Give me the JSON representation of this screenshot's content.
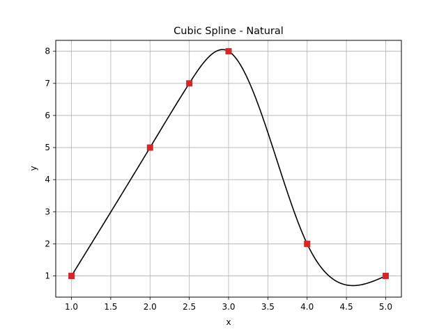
{
  "chart_data": {
    "type": "line",
    "title": "Cubic Spline - Natural",
    "xlabel": "x",
    "ylabel": "y",
    "xlim": [
      0.8,
      5.2
    ],
    "ylim": [
      0.34,
      8.34
    ],
    "xticks": [
      1.0,
      1.5,
      2.0,
      2.5,
      3.0,
      3.5,
      4.0,
      4.5,
      5.0
    ],
    "xtick_labels": [
      "1.0",
      "1.5",
      "2.0",
      "2.5",
      "3.0",
      "3.5",
      "4.0",
      "4.5",
      "5.0"
    ],
    "yticks": [
      1,
      2,
      3,
      4,
      5,
      6,
      7,
      8
    ],
    "ytick_labels": [
      "1",
      "2",
      "3",
      "4",
      "5",
      "6",
      "7",
      "8"
    ],
    "grid": true,
    "legend": false,
    "series": [
      {
        "kind": "spline",
        "color": "#000000",
        "boundary_condition": "natural",
        "knots": {
          "x": [
            1.0,
            2.0,
            2.5,
            3.0,
            4.0,
            5.0
          ],
          "y": [
            1,
            5,
            7,
            8,
            2,
            1
          ]
        }
      },
      {
        "kind": "markers",
        "marker": "square",
        "color": "#d62728",
        "x": [
          1.0,
          2.0,
          2.5,
          3.0,
          4.0,
          5.0
        ],
        "y": [
          1,
          5,
          7,
          8,
          2,
          1
        ]
      }
    ]
  }
}
